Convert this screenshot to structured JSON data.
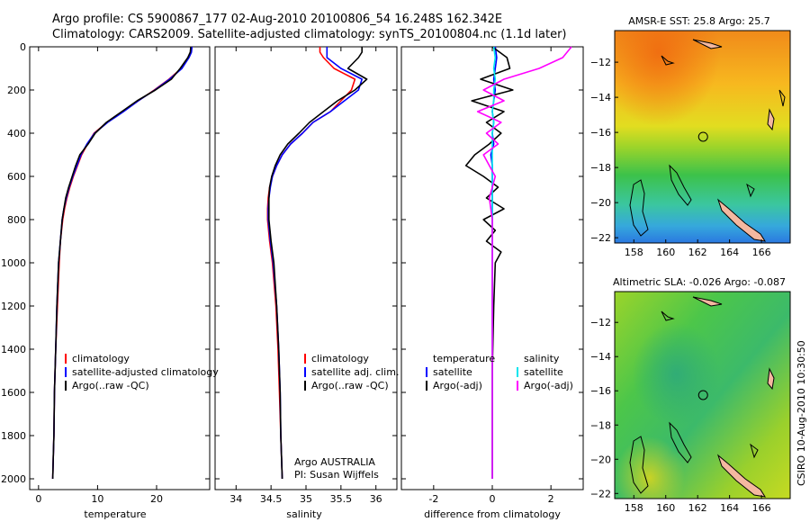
{
  "header": {
    "line1": "Argo profile: CS 5900867_177 02-Aug-2010 20100806_54 16.248S 162.342E",
    "line2": "Climatology: CARS2009. Satellite-adjusted climatology: synTS_20100804.nc (1.1d later)"
  },
  "colors": {
    "climatology": "#ff0000",
    "satellite": "#0000ff",
    "argo": "#000000",
    "sal_satellite": "#00e5ee",
    "sal_argo": "#ff00ff",
    "land": "#f4b8a0"
  },
  "chart_data": [
    {
      "type": "line",
      "id": "temperature",
      "xlabel": "temperature",
      "ylabel": "",
      "xlim": [
        -1.5,
        29
      ],
      "ylim": [
        2050,
        0
      ],
      "xticks": [
        0,
        10,
        20
      ],
      "yticks": [
        0,
        200,
        400,
        600,
        800,
        1000,
        1200,
        1400,
        1600,
        1800,
        2000
      ],
      "legend": [
        "climatology",
        "satellite-adjusted climatology",
        "Argo(..raw -QC)"
      ],
      "series": [
        {
          "name": "climatology",
          "x": [
            25.9,
            25.8,
            25.4,
            24.2,
            22.1,
            19.6,
            16.9,
            14.3,
            11.6,
            9.4,
            8.3,
            7.3,
            6.6,
            5.9,
            5.3,
            4.8,
            4.4,
            4.1,
            3.7,
            3.5,
            3.2,
            2.9,
            2.7,
            2.6,
            2.5,
            2.4
          ],
          "y": [
            0,
            25,
            50,
            100,
            150,
            200,
            250,
            300,
            350,
            400,
            450,
            500,
            550,
            600,
            650,
            700,
            750,
            800,
            900,
            1000,
            1200,
            1400,
            1600,
            1800,
            1900,
            2000
          ]
        },
        {
          "name": "satellite-adjusted climatology",
          "x": [
            26.0,
            25.9,
            25.5,
            24.3,
            22.2,
            19.7,
            16.9,
            14.4,
            11.7,
            9.5,
            8.2,
            7.2,
            6.5,
            5.8,
            5.2,
            4.7,
            4.3,
            4.0,
            3.7,
            3.4,
            3.1,
            2.9,
            2.7,
            2.6,
            2.5,
            2.4
          ],
          "y": [
            0,
            25,
            50,
            100,
            150,
            200,
            250,
            300,
            350,
            400,
            450,
            500,
            550,
            600,
            650,
            700,
            750,
            800,
            900,
            1000,
            1200,
            1400,
            1600,
            1800,
            1900,
            2000
          ]
        },
        {
          "name": "Argo(..raw -QC)",
          "x": [
            25.8,
            25.7,
            25.3,
            24.0,
            22.5,
            19.8,
            16.7,
            14.1,
            11.5,
            9.6,
            8.4,
            7.0,
            6.3,
            5.7,
            5.1,
            4.6,
            4.3,
            4.0,
            3.7,
            3.4,
            3.1,
            2.9,
            2.7,
            2.6,
            2.5,
            2.4
          ],
          "y": [
            0,
            25,
            50,
            100,
            150,
            200,
            250,
            300,
            350,
            400,
            450,
            500,
            550,
            600,
            650,
            700,
            750,
            800,
            900,
            1000,
            1200,
            1400,
            1600,
            1800,
            1900,
            2000
          ]
        }
      ]
    },
    {
      "type": "line",
      "id": "salinity",
      "xlabel": "salinity",
      "xlim": [
        33.7,
        36.3
      ],
      "ylim": [
        2050,
        0
      ],
      "xticks": [
        34,
        34.5,
        35,
        35.5,
        36
      ],
      "legend": [
        "climatology",
        "satellite adj. clim.",
        "Argo(..raw -QC)"
      ],
      "series": [
        {
          "name": "climatology",
          "x": [
            35.2,
            35.2,
            35.25,
            35.4,
            35.7,
            35.65,
            35.5,
            35.35,
            35.1,
            34.95,
            34.78,
            34.66,
            34.58,
            34.52,
            34.48,
            34.46,
            34.45,
            34.45,
            34.48,
            34.52,
            34.57,
            34.6,
            34.62,
            34.64,
            34.65,
            34.66
          ],
          "y": [
            0,
            25,
            50,
            100,
            150,
            200,
            250,
            300,
            350,
            400,
            450,
            500,
            550,
            600,
            650,
            700,
            750,
            800,
            900,
            1000,
            1200,
            1400,
            1600,
            1800,
            1900,
            2000
          ]
        },
        {
          "name": "satellite adj. clim.",
          "x": [
            35.3,
            35.3,
            35.3,
            35.5,
            35.8,
            35.75,
            35.55,
            35.35,
            35.1,
            34.95,
            34.78,
            34.66,
            34.58,
            34.52,
            34.49,
            34.47,
            34.46,
            34.46,
            34.49,
            34.53,
            34.58,
            34.61,
            34.63,
            34.64,
            34.65,
            34.66
          ],
          "y": [
            0,
            25,
            50,
            100,
            150,
            200,
            250,
            300,
            350,
            400,
            450,
            500,
            550,
            600,
            650,
            700,
            750,
            800,
            900,
            1000,
            1200,
            1400,
            1600,
            1800,
            1900,
            2000
          ]
        },
        {
          "name": "Argo(..raw -QC)",
          "x": [
            35.8,
            35.8,
            35.75,
            35.6,
            35.87,
            35.7,
            35.45,
            35.25,
            35.05,
            34.9,
            34.74,
            34.63,
            34.56,
            34.51,
            34.48,
            34.47,
            34.47,
            34.47,
            34.5,
            34.54,
            34.58,
            34.61,
            34.63,
            34.64,
            34.65,
            34.66
          ],
          "y": [
            0,
            25,
            50,
            100,
            150,
            200,
            250,
            300,
            350,
            400,
            450,
            500,
            550,
            600,
            650,
            700,
            750,
            800,
            900,
            1000,
            1200,
            1400,
            1600,
            1800,
            1900,
            2000
          ]
        }
      ],
      "annotations": [
        "Argo AUSTRALIA",
        "PI: Susan Wijffels"
      ]
    },
    {
      "type": "line",
      "id": "difference",
      "xlabel": "difference from climatology",
      "xlim": [
        -3.1,
        3.1
      ],
      "ylim": [
        2050,
        0
      ],
      "xticks": [
        -2,
        0,
        2
      ],
      "legend_temperature_title": "temperature",
      "legend_salinity_title": "salinity",
      "legend_temperature": [
        "satellite",
        "Argo(-adj)"
      ],
      "legend_salinity": [
        "satellite",
        "Argo(-adj)"
      ],
      "series": [
        {
          "name": "temperature satellite",
          "x": [
            0.1,
            0.15,
            0.1,
            0.05,
            0.1,
            0.05,
            0,
            0.05,
            0,
            0.05,
            -0.05,
            0,
            0,
            0,
            0,
            0,
            0,
            0,
            0,
            0,
            0,
            0,
            0,
            0,
            0
          ],
          "y": [
            0,
            50,
            100,
            150,
            200,
            250,
            300,
            350,
            400,
            450,
            500,
            550,
            600,
            700,
            800,
            900,
            1000,
            1200,
            1400,
            1600,
            1800,
            1900,
            1950,
            2000,
            2000
          ]
        },
        {
          "name": "temperature Argo(-adj)",
          "x": [
            0,
            0.5,
            0.6,
            -0.4,
            0.7,
            -0.7,
            0.4,
            -0.2,
            0.3,
            -0.1,
            -0.6,
            -0.9,
            -0.3,
            0.2,
            -0.2,
            0.4,
            -0.3,
            0.1,
            -0.2,
            0.3,
            0.1,
            0.05,
            0,
            0,
            0
          ],
          "y": [
            0,
            50,
            100,
            150,
            200,
            250,
            300,
            350,
            400,
            450,
            500,
            550,
            600,
            650,
            700,
            750,
            800,
            850,
            900,
            950,
            1000,
            1200,
            1500,
            1800,
            2000
          ]
        },
        {
          "name": "salinity satellite",
          "x": [
            0.05,
            0.1,
            0.05,
            0.1,
            0.05,
            0.05,
            0,
            0.05,
            0,
            0,
            0,
            0,
            0,
            0,
            0,
            0,
            0,
            0,
            0,
            0,
            0
          ],
          "y": [
            0,
            50,
            100,
            150,
            200,
            250,
            300,
            350,
            400,
            500,
            600,
            700,
            800,
            900,
            1000,
            1200,
            1400,
            1600,
            1800,
            1900,
            2000
          ]
        },
        {
          "name": "salinity Argo(-adj)",
          "x": [
            2.7,
            2.4,
            1.6,
            0.4,
            -0.3,
            0.4,
            -0.5,
            0.3,
            -0.2,
            0.2,
            -0.3,
            -0.1,
            0.1,
            -0.1,
            0,
            0,
            0,
            0,
            0,
            0,
            0
          ],
          "y": [
            0,
            50,
            100,
            150,
            200,
            250,
            300,
            350,
            400,
            450,
            500,
            550,
            600,
            700,
            800,
            1000,
            1200,
            1400,
            1600,
            1800,
            2000
          ]
        }
      ]
    },
    {
      "type": "heatmap",
      "id": "sst-map",
      "title": "AMSR-E SST: 25.8 Argo: 25.7",
      "xlim": [
        156.8,
        167.8
      ],
      "ylim": [
        -22.3,
        -10.2
      ],
      "xticks": [
        158,
        160,
        162,
        164,
        166
      ],
      "yticks": [
        -12,
        -14,
        -16,
        -18,
        -20,
        -22
      ],
      "marker": {
        "lon": 162.342,
        "lat": -16.248
      }
    },
    {
      "type": "heatmap",
      "id": "sla-map",
      "title": "Altimetric SLA: -0.026 Argo: -0.087",
      "xlim": [
        156.8,
        167.8
      ],
      "ylim": [
        -22.3,
        -10.2
      ],
      "xticks": [
        158,
        160,
        162,
        164,
        166
      ],
      "yticks": [
        -12,
        -14,
        -16,
        -18,
        -20,
        -22
      ],
      "marker": {
        "lon": 162.342,
        "lat": -16.248
      }
    }
  ],
  "footer_vertical": "CSIRO 10-Aug-2010 10:30:50"
}
